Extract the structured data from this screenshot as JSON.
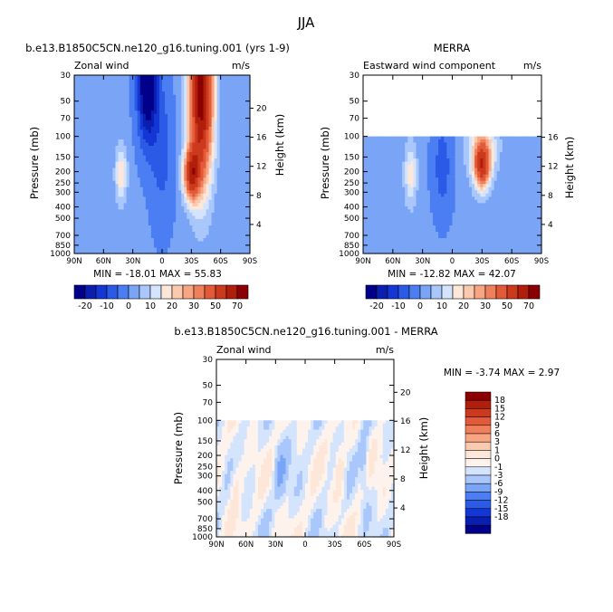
{
  "figure_title": "JJA",
  "colors": {
    "panel_scale": [
      "#00008b",
      "#0a1fb0",
      "#1436d4",
      "#2a5ae6",
      "#4a7ef2",
      "#7aa4f6",
      "#a9c7fa",
      "#d4e4fd",
      "#fde7d8",
      "#fbc9ae",
      "#f7a583",
      "#f07f5c",
      "#e35a38",
      "#cc3a1e",
      "#b11e0c",
      "#8b0000"
    ],
    "diff_scale": [
      "#00008b",
      "#0a1fb0",
      "#1436d4",
      "#2a5ae6",
      "#4a7ef2",
      "#7aa4f6",
      "#a9c7fa",
      "#d4e4fd",
      "#fdf3ec",
      "#fde7d8",
      "#fbc9ae",
      "#f7a583",
      "#f07f5c",
      "#e35a38",
      "#cc3a1e",
      "#b11e0c",
      "#8b0000"
    ]
  },
  "chart_data": [
    {
      "type": "heatmap",
      "title": "b.e13.B1850C5CN.ne120_g16.tuning.001 (yrs 1-9)",
      "left_label": "Zonal wind",
      "units": "m/s",
      "ylabel": "Pressure (mb)",
      "right_ylabel": "Height (km)",
      "x_ticks": [
        "90N",
        "60N",
        "30N",
        "0",
        "30S",
        "60S",
        "90S"
      ],
      "y_ticks": [
        "30",
        "50",
        "70",
        "100",
        "150",
        "200",
        "250",
        "300",
        "400",
        "500",
        "700",
        "850",
        "1000"
      ],
      "right_ticks": [
        "20",
        "16",
        "12",
        "8",
        "4"
      ],
      "ylim": [
        1000,
        30
      ],
      "data_top_mb": 30,
      "min_max_text": "MIN = -18.01   MAX = 55.83",
      "colorbar_labels": [
        "-20",
        "-10",
        "0",
        "10",
        "20",
        "30",
        "50",
        "70"
      ]
    },
    {
      "type": "heatmap",
      "title": "MERRA",
      "left_label": "Eastward wind component",
      "units": "m/s",
      "ylabel": "Pressure (mb)",
      "right_ylabel": "Height (km)",
      "x_ticks": [
        "90N",
        "60N",
        "30N",
        "0",
        "30S",
        "60S",
        "90S"
      ],
      "y_ticks": [
        "30",
        "50",
        "70",
        "100",
        "150",
        "200",
        "250",
        "300",
        "400",
        "500",
        "700",
        "850",
        "1000"
      ],
      "right_ticks": [
        "16",
        "12",
        "8",
        "4"
      ],
      "ylim": [
        1000,
        30
      ],
      "data_top_mb": 100,
      "min_max_text": "MIN = -12.82   MAX = 42.07",
      "colorbar_labels": [
        "-20",
        "-10",
        "0",
        "10",
        "20",
        "30",
        "50",
        "70"
      ]
    },
    {
      "type": "heatmap",
      "title": "b.e13.B1850C5CN.ne120_g16.tuning.001 - MERRA",
      "left_label": "Zonal wind",
      "units": "m/s",
      "ylabel": "Pressure (mb)",
      "right_ylabel": "Height (km)",
      "x_ticks": [
        "90N",
        "60N",
        "30N",
        "0",
        "30S",
        "60S",
        "90S"
      ],
      "y_ticks": [
        "30",
        "50",
        "70",
        "100",
        "150",
        "200",
        "250",
        "300",
        "400",
        "500",
        "700",
        "850",
        "1000"
      ],
      "right_ticks": [
        "20",
        "16",
        "12",
        "8",
        "4"
      ],
      "ylim": [
        1000,
        30
      ],
      "data_top_mb": 100,
      "min_max_text": "MIN =  -3.74   MAX =   2.97",
      "colorbar_labels": [
        "18",
        "15",
        "12",
        "9",
        "6",
        "3",
        "1",
        "0",
        "-1",
        "-3",
        "-6",
        "-9",
        "-12",
        "-15",
        "-18"
      ]
    }
  ]
}
